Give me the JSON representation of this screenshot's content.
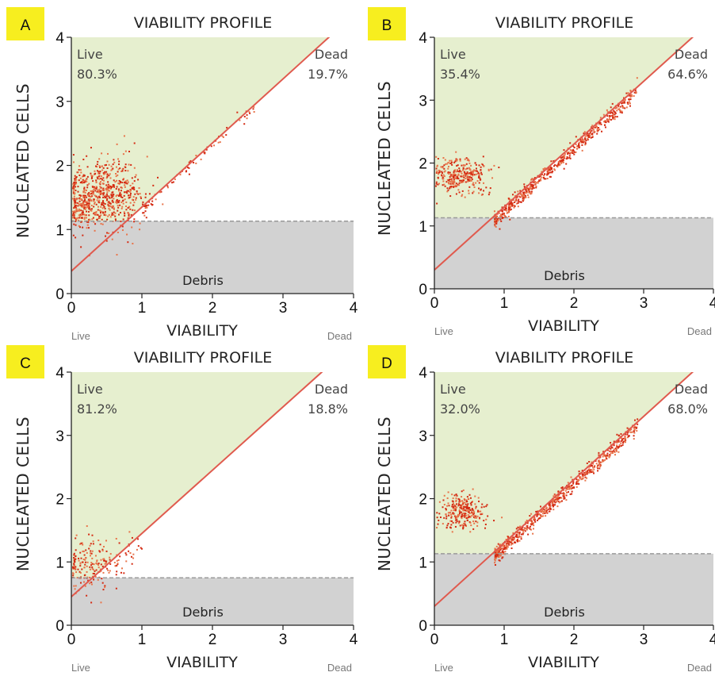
{
  "colors": {
    "live_region": "#e6efcf",
    "debris_region": "#d2d2d2",
    "diagonal": "#e05a4e",
    "threshold": "#9a9a9a",
    "points": "#d42a12",
    "points_light": "#e8744a",
    "letter_badge": "#f7ee1f"
  },
  "chart_data": [
    {
      "type": "scatter",
      "panel_label": "A",
      "title": "VIABILITY PROFILE",
      "xlabel": "VIABILITY",
      "ylabel": "NUCLEATED CELLS",
      "xlim": [
        0,
        4
      ],
      "ylim": [
        0,
        4
      ],
      "xticks": [
        "0",
        "1",
        "2",
        "3",
        "4"
      ],
      "yticks": [
        "0",
        "1",
        "2",
        "3",
        "4"
      ],
      "x_left_label": "Live",
      "x_right_label": "Dead",
      "live_label": "Live",
      "live_pct": "80.3%",
      "dead_label": "Dead",
      "dead_pct": "19.7%",
      "debris_label": "Debris",
      "debris_threshold": 1.13,
      "diagonal": {
        "intercept": 0.35,
        "slope": 1.0
      },
      "clusters": [
        {
          "cx": 0.45,
          "cy": 1.55,
          "sx": 0.28,
          "sy": 0.28,
          "n": 650,
          "kind": "live"
        },
        {
          "cx": 0.15,
          "cy": 1.3,
          "sx": 0.12,
          "sy": 0.12,
          "n": 80,
          "kind": "live"
        },
        {
          "x0": 1.0,
          "x1": 2.6,
          "offset": -0.02,
          "spread": 0.05,
          "n": 70,
          "kind": "dead"
        }
      ]
    },
    {
      "type": "scatter",
      "panel_label": "B",
      "title": "VIABILITY PROFILE",
      "xlabel": "VIABILITY",
      "ylabel": "NUCLEATED CELLS",
      "xlim": [
        0,
        4
      ],
      "ylim": [
        0,
        4
      ],
      "xticks": [
        "0",
        "1",
        "2",
        "3",
        "4"
      ],
      "yticks": [
        "0",
        "1",
        "2",
        "3",
        "4"
      ],
      "x_left_label": "Live",
      "x_right_label": "Dead",
      "live_label": "Live",
      "live_pct": "35.4%",
      "dead_label": "Dead",
      "dead_pct": "64.6%",
      "debris_label": "Debris",
      "debris_threshold": 1.13,
      "diagonal": {
        "intercept": 0.3,
        "slope": 1.0
      },
      "clusters": [
        {
          "cx": 0.35,
          "cy": 1.82,
          "sx": 0.2,
          "sy": 0.15,
          "n": 300,
          "kind": "live"
        },
        {
          "x0": 0.85,
          "x1": 2.9,
          "offset": -0.05,
          "spread": 0.06,
          "n": 600,
          "kind": "dead"
        }
      ]
    },
    {
      "type": "scatter",
      "panel_label": "C",
      "title": "VIABILITY PROFILE",
      "xlabel": "VIABILITY",
      "ylabel": "NUCLEATED CELLS",
      "xlim": [
        0,
        4
      ],
      "ylim": [
        0,
        4
      ],
      "xticks": [
        "0",
        "1",
        "2",
        "3",
        "4"
      ],
      "yticks": [
        "0",
        "1",
        "2",
        "3",
        "4"
      ],
      "x_left_label": "Live",
      "x_right_label": "Dead",
      "live_label": "Live",
      "live_pct": "81.2%",
      "dead_label": "Dead",
      "dead_pct": "18.8%",
      "debris_label": "Debris",
      "debris_threshold": 0.75,
      "diagonal": {
        "intercept": 0.45,
        "slope": 1.0
      },
      "clusters": [
        {
          "cx": 0.25,
          "cy": 1.0,
          "sx": 0.22,
          "sy": 0.22,
          "n": 180,
          "kind": "live"
        },
        {
          "x0": 0.6,
          "x1": 1.0,
          "offset": -0.1,
          "spread": 0.08,
          "n": 25,
          "kind": "dead"
        }
      ]
    },
    {
      "type": "scatter",
      "panel_label": "D",
      "title": "VIABILITY PROFILE",
      "xlabel": "VIABILITY",
      "ylabel": "NUCLEATED CELLS",
      "xlim": [
        0,
        4
      ],
      "ylim": [
        0,
        4
      ],
      "xticks": [
        "0",
        "1",
        "2",
        "3",
        "4"
      ],
      "yticks": [
        "0",
        "1",
        "2",
        "3",
        "4"
      ],
      "x_left_label": "Live",
      "x_right_label": "Dead",
      "live_label": "Live",
      "live_pct": "32.0%",
      "dead_label": "Dead",
      "dead_pct": "68.0%",
      "debris_label": "Debris",
      "debris_threshold": 1.13,
      "diagonal": {
        "intercept": 0.3,
        "slope": 1.0
      },
      "clusters": [
        {
          "cx": 0.4,
          "cy": 1.8,
          "sx": 0.17,
          "sy": 0.13,
          "n": 260,
          "kind": "live"
        },
        {
          "x0": 0.85,
          "x1": 2.9,
          "offset": -0.05,
          "spread": 0.06,
          "n": 650,
          "kind": "dead"
        }
      ]
    }
  ]
}
